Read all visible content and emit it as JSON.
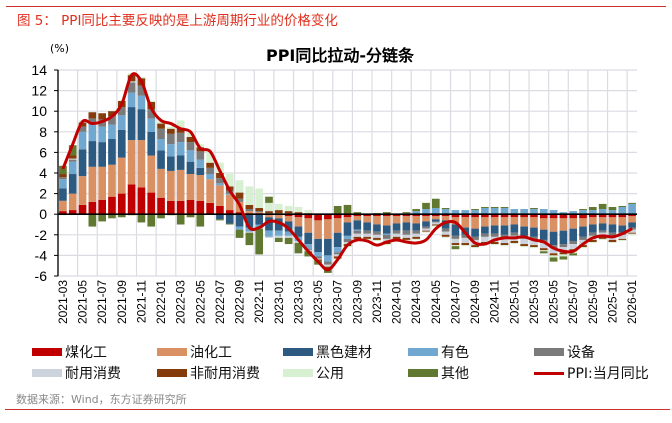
{
  "figure_caption": "图 5： PPI同比主要反映的是上游周期行业的价格变化",
  "source": "数据来源：Wind，东方证券研究所",
  "chart_data": {
    "type": "bar",
    "stacked": true,
    "title": "PPI同比拉动-分链条",
    "ylabel": "(%)",
    "ylim": [
      -6,
      14
    ],
    "yticks": [
      14,
      12,
      10,
      8,
      6,
      4,
      2,
      0,
      -2,
      -4,
      -6
    ],
    "grid": true,
    "legend_position": "bottom",
    "categories": [
      "2021-03",
      "2021-04",
      "2021-05",
      "2021-06",
      "2021-07",
      "2021-08",
      "2021-09",
      "2021-10",
      "2021-11",
      "2021-12",
      "2022-01",
      "2022-02",
      "2022-03",
      "2022-04",
      "2022-05",
      "2022-06",
      "2022-07",
      "2022-08",
      "2022-09",
      "2022-10",
      "2022-11",
      "2022-12",
      "2023-01",
      "2023-02",
      "2023-03",
      "2023-04",
      "2023-05",
      "2023-06",
      "2023-07",
      "2023-08",
      "2023-09",
      "2023-10",
      "2023-11",
      "2023-12",
      "2024-01",
      "2024-02",
      "2024-03",
      "2024-04",
      "2024-05",
      "2024-06",
      "2024-07",
      "2024-08",
      "2024-09",
      "2024-10",
      "2024-11",
      "2024-12",
      "2025-01",
      "2025-02",
      "2025-03",
      "2025-04",
      "2025-05",
      "2025-06",
      "2025-07",
      "2025-08",
      "2025-09",
      "2025-10",
      "2025-11",
      "2025-12",
      "2026-01"
    ],
    "xticks": [
      "2021-03",
      "2021-05",
      "2021-07",
      "2021-09",
      "2021-11",
      "2022-01",
      "2022-03",
      "2022-05",
      "2022-07",
      "2022-09",
      "2022-11",
      "2023-01",
      "2023-03",
      "2023-05",
      "2023-07",
      "2023-09",
      "2023-11",
      "2024-01",
      "2024-03",
      "2024-05",
      "2024-07",
      "2024-09",
      "2024-11",
      "2025-01",
      "2025-03",
      "2025-05",
      "2025-07",
      "2025-09",
      "2025-11",
      "2026-01"
    ],
    "series": [
      {
        "name": "煤化工",
        "color": "#c00000",
        "values": [
          0.3,
          0.4,
          0.9,
          1.2,
          1.4,
          1.7,
          2.0,
          2.9,
          2.6,
          2.1,
          1.6,
          1.3,
          1.3,
          1.4,
          1.3,
          1.1,
          0.8,
          0.4,
          0.2,
          0.1,
          0.1,
          -0.1,
          -0.1,
          -0.2,
          -0.3,
          -0.4,
          -0.6,
          -0.5,
          -0.4,
          -0.3,
          -0.2,
          -0.2,
          -0.2,
          -0.2,
          -0.2,
          -0.2,
          -0.2,
          -0.2,
          -0.2,
          -0.2,
          -0.3,
          -0.3,
          -0.3,
          -0.3,
          -0.3,
          -0.3,
          -0.3,
          -0.3,
          -0.3,
          -0.4,
          -0.4,
          -0.4,
          -0.4,
          -0.4,
          -0.3,
          -0.3,
          -0.3,
          -0.3,
          -0.2
        ]
      },
      {
        "name": "油化工",
        "color": "#d99164",
        "values": [
          1.0,
          1.6,
          2.8,
          3.4,
          3.2,
          3.1,
          3.5,
          4.3,
          4.6,
          3.6,
          2.8,
          2.9,
          3.0,
          2.5,
          2.5,
          2.3,
          2.0,
          1.5,
          1.0,
          0.2,
          0.1,
          -0.2,
          -0.3,
          -0.5,
          -0.9,
          -1.4,
          -1.8,
          -1.9,
          -1.4,
          -0.5,
          -0.4,
          -0.6,
          -0.8,
          -0.9,
          -0.7,
          -0.6,
          -0.7,
          -0.5,
          -0.3,
          -0.4,
          -0.7,
          -1.0,
          -1.1,
          -0.9,
          -0.8,
          -0.8,
          -0.7,
          -0.9,
          -1.0,
          -1.1,
          -1.3,
          -1.2,
          -1.0,
          -0.8,
          -0.7,
          -0.6,
          -0.7,
          -0.8,
          -0.6
        ]
      },
      {
        "name": "黑色建材",
        "color": "#2d5a80",
        "values": [
          1.2,
          1.9,
          2.6,
          2.5,
          2.4,
          2.5,
          2.7,
          3.2,
          3.0,
          2.3,
          1.8,
          1.4,
          1.4,
          1.2,
          0.7,
          0,
          -0.5,
          -0.9,
          -1.2,
          -1.3,
          -1.0,
          -1.3,
          -1.2,
          -1.0,
          -1.0,
          -1.1,
          -1.3,
          -1.6,
          -1.4,
          -1.3,
          -0.9,
          -0.8,
          -0.7,
          -0.8,
          -0.7,
          -0.8,
          -0.7,
          -0.5,
          -0.2,
          -0.8,
          -1.1,
          -0.7,
          -0.8,
          -0.7,
          -0.8,
          -0.9,
          -0.8,
          -0.9,
          -0.9,
          -1.0,
          -1.3,
          -1.3,
          -1.2,
          -1.0,
          -0.8,
          -0.7,
          -0.8,
          -0.7,
          -0.5
        ]
      },
      {
        "name": "有色",
        "color": "#70a8d0",
        "values": [
          0.9,
          1.2,
          1.7,
          1.6,
          1.5,
          1.4,
          1.4,
          1.4,
          1.3,
          1.3,
          1.1,
          1.2,
          1.3,
          1.1,
          0.8,
          0.5,
          0.2,
          0.1,
          -0.3,
          -0.4,
          -0.3,
          -0.6,
          -0.5,
          -0.4,
          -0.4,
          -0.5,
          -0.4,
          -0.6,
          -0.5,
          -0.3,
          -0.1,
          0,
          0,
          -0.1,
          0,
          0.1,
          0.3,
          0.5,
          0.6,
          0.5,
          0.4,
          0.4,
          0.4,
          0.6,
          0.6,
          0.6,
          0.5,
          0.5,
          0.5,
          0.5,
          0.4,
          0.2,
          0.3,
          0.4,
          0.4,
          0.5,
          0.4,
          0.7,
          1.0
        ]
      },
      {
        "name": "设备",
        "color": "#7a7a7a",
        "values": [
          0.2,
          0.2,
          0.5,
          0.6,
          0.7,
          0.8,
          0.8,
          1.0,
          1.0,
          0.9,
          1.0,
          1.0,
          0.9,
          0.8,
          0.8,
          0.6,
          0.5,
          0.3,
          0.3,
          0.2,
          0.1,
          0.1,
          0.1,
          0.1,
          0,
          -0.1,
          -0.2,
          -0.3,
          -0.2,
          -0.3,
          -0.3,
          -0.3,
          -0.3,
          -0.4,
          -0.3,
          -0.4,
          -0.3,
          -0.2,
          -0.1,
          -0.3,
          -0.3,
          -0.3,
          -0.3,
          -0.3,
          -0.3,
          -0.3,
          -0.3,
          -0.3,
          -0.3,
          -0.3,
          -0.3,
          -0.3,
          -0.3,
          -0.3,
          -0.3,
          -0.2,
          -0.3,
          -0.2,
          -0.2
        ]
      },
      {
        "name": "耐用消费",
        "color": "#cdd3dc",
        "values": [
          0,
          0.1,
          0,
          0,
          0,
          0,
          0,
          0.1,
          0,
          0,
          0,
          0,
          0,
          0,
          0,
          0,
          0,
          0,
          0,
          -0.1,
          -0.1,
          -0.1,
          -0.2,
          -0.2,
          -0.2,
          -0.1,
          -0.1,
          -0.2,
          -0.2,
          -0.2,
          -0.3,
          -0.3,
          -0.3,
          -0.3,
          -0.3,
          -0.3,
          -0.3,
          -0.2,
          -0.2,
          -0.3,
          -0.4,
          -0.5,
          -0.5,
          -0.5,
          -0.5,
          -0.5,
          -0.5,
          -0.5,
          -0.5,
          -0.5,
          -0.5,
          -0.5,
          -0.5,
          -0.5,
          -0.4,
          -0.4,
          -0.4,
          -0.4,
          -0.3
        ]
      },
      {
        "name": "非耐用消费",
        "color": "#843c0c",
        "values": [
          0.3,
          0.3,
          0.4,
          0.6,
          0.6,
          0.5,
          0.6,
          0.6,
          0.7,
          0.7,
          0.5,
          0.5,
          0.5,
          0.5,
          0.4,
          0.5,
          0.5,
          0.4,
          0.6,
          0.4,
          0.3,
          0.2,
          0.3,
          0.2,
          0.2,
          0.1,
          -0.1,
          -0.2,
          -0.2,
          -0.2,
          -0.2,
          -0.2,
          -0.2,
          -0.2,
          -0.2,
          -0.2,
          -0.2,
          -0.1,
          -0.1,
          -0.2,
          -0.2,
          -0.2,
          -0.2,
          -0.2,
          -0.2,
          -0.2,
          -0.2,
          -0.2,
          -0.2,
          -0.2,
          -0.2,
          -0.2,
          -0.2,
          -0.2,
          -0.2,
          -0.2,
          -0.2,
          -0.1,
          -0.1
        ]
      },
      {
        "name": "公用",
        "color": "#d8f0d2",
        "values": [
          -0.1,
          0,
          0.2,
          0,
          0,
          0,
          0,
          0.2,
          0.1,
          0.1,
          0.3,
          0.2,
          0.7,
          0.4,
          0.3,
          1.1,
          1.0,
          1.2,
          1.2,
          1.8,
          1.9,
          0.8,
          0.6,
          0.5,
          0.5,
          0.3,
          0.1,
          -0.1,
          -0.1,
          -0.1,
          -0.1,
          -0.1,
          -0.1,
          -0.1,
          -0.1,
          -0.1,
          -0.1,
          -0.1,
          -0.1,
          -0.1,
          -0.1,
          -0.1,
          -0.1,
          -0.1,
          -0.1,
          -0.1,
          -0.1,
          -0.1,
          -0.1,
          -0.1,
          -0.2,
          -0.2,
          -0.2,
          -0.1,
          -0.1,
          -0.1,
          -0.1,
          -0.1,
          -0.1
        ]
      },
      {
        "name": "其他",
        "color": "#607830",
        "values": [
          0.8,
          1.0,
          0,
          -1.2,
          -0.7,
          -0.4,
          -0.3,
          -0.1,
          -0.8,
          -1.2,
          -0.4,
          -0.1,
          -1.0,
          -0.3,
          -1.2,
          0,
          -0.1,
          -0.1,
          -0.8,
          -1.2,
          -2.5,
          0.6,
          -0.4,
          -0.6,
          -1.0,
          -0.5,
          -0.4,
          -0.3,
          0.8,
          0.9,
          0.2,
          0,
          0.1,
          0.2,
          -0.1,
          0.1,
          0.2,
          0.6,
          0.9,
          0.1,
          -0.3,
          0,
          0.1,
          0.1,
          0.1,
          0.1,
          0,
          0,
          0.1,
          -0.2,
          -0.4,
          -0.3,
          -0.2,
          0.1,
          0.3,
          0.5,
          0.3,
          0.1,
          0.1
        ]
      }
    ],
    "line": {
      "name": "PPI:当月同比",
      "color": "#c00000",
      "values": [
        4.4,
        6.8,
        9.0,
        8.8,
        9.0,
        9.5,
        10.7,
        13.5,
        12.9,
        10.3,
        9.1,
        8.8,
        8.3,
        8.0,
        6.4,
        6.1,
        4.2,
        2.3,
        0.9,
        -1.3,
        -1.3,
        -0.7,
        -0.8,
        -1.4,
        -2.5,
        -3.6,
        -4.6,
        -5.4,
        -4.4,
        -3.0,
        -2.5,
        -2.6,
        -3.0,
        -2.7,
        -2.5,
        -2.7,
        -2.8,
        -2.5,
        -1.4,
        -0.8,
        -0.8,
        -1.8,
        -2.8,
        -2.9,
        -2.5,
        -2.3,
        -2.3,
        -2.2,
        -2.5,
        -2.7,
        -3.3,
        -3.6,
        -3.6,
        -2.9,
        -2.3,
        -2.1,
        -2.2,
        -1.9,
        -1.4
      ]
    }
  }
}
